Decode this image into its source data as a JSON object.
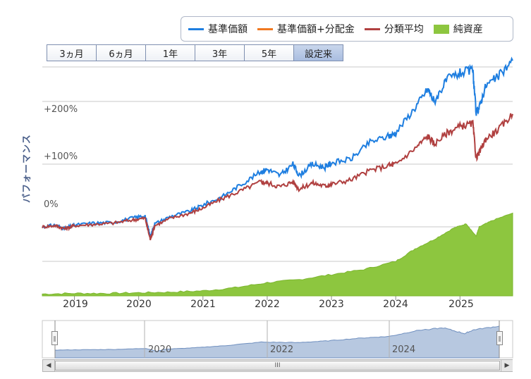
{
  "legend": [
    {
      "label": "基準価額",
      "color": "#1e7ee0",
      "kind": "line"
    },
    {
      "label": "基準価額+分配金",
      "color": "#f07820",
      "kind": "line"
    },
    {
      "label": "分類平均",
      "color": "#b04040",
      "kind": "line"
    },
    {
      "label": "純資産",
      "color": "#8dc63f",
      "kind": "area"
    }
  ],
  "range_buttons": [
    "3ヵ月",
    "6ヵ月",
    "1年",
    "3年",
    "5年",
    "設定来"
  ],
  "range_selected": "設定来",
  "y_axis_label": "パフォーマンス",
  "y_ticks": [
    "+200%",
    "+100%",
    "0%"
  ],
  "x_ticks": [
    "2019",
    "2020",
    "2021",
    "2022",
    "2023",
    "2024",
    "2025"
  ],
  "navigator_ticks": [
    "2020",
    "2022",
    "2024"
  ],
  "scrollbar": {
    "left_arrow": "◀",
    "right_arrow": "▶",
    "grip": "III"
  },
  "chart_data": {
    "type": "line",
    "y_unit": "%",
    "ylim": [
      -110,
      255
    ],
    "x_range": [
      2018.5,
      2025.82
    ],
    "series": [
      {
        "name": "基準価額",
        "color": "#1e7ee0",
        "x": [
          2018.5,
          2018.7,
          2018.85,
          2019.0,
          2019.3,
          2019.6,
          2019.9,
          2020.1,
          2020.18,
          2020.25,
          2020.5,
          2020.8,
          2021.0,
          2021.3,
          2021.6,
          2021.9,
          2022.0,
          2022.2,
          2022.4,
          2022.5,
          2022.7,
          2022.9,
          2023.0,
          2023.3,
          2023.6,
          2023.9,
          2024.0,
          2024.3,
          2024.5,
          2024.6,
          2024.8,
          2025.0,
          2025.2,
          2025.25,
          2025.3,
          2025.4,
          2025.6,
          2025.82
        ],
        "values": [
          0,
          3,
          -3,
          3,
          6,
          7,
          14,
          18,
          -15,
          5,
          17,
          25,
          35,
          48,
          68,
          88,
          92,
          82,
          100,
          82,
          100,
          95,
          102,
          108,
          135,
          145,
          150,
          190,
          220,
          200,
          235,
          245,
          250,
          182,
          190,
          225,
          240,
          265
        ]
      },
      {
        "name": "分類平均",
        "color": "#b04040",
        "x": [
          2018.5,
          2018.7,
          2018.85,
          2019.0,
          2019.3,
          2019.6,
          2019.9,
          2020.1,
          2020.18,
          2020.25,
          2020.5,
          2020.8,
          2021.0,
          2021.3,
          2021.6,
          2021.9,
          2022.0,
          2022.2,
          2022.4,
          2022.5,
          2022.7,
          2022.9,
          2023.0,
          2023.3,
          2023.6,
          2023.9,
          2024.0,
          2024.3,
          2024.5,
          2024.6,
          2024.8,
          2025.0,
          2025.2,
          2025.25,
          2025.3,
          2025.4,
          2025.6,
          2025.82
        ],
        "values": [
          0,
          2,
          -3,
          2,
          4,
          6,
          11,
          14,
          -20,
          2,
          14,
          22,
          30,
          45,
          58,
          72,
          70,
          64,
          72,
          60,
          70,
          65,
          68,
          75,
          90,
          98,
          100,
          125,
          145,
          132,
          150,
          160,
          165,
          110,
          118,
          140,
          155,
          180
        ]
      },
      {
        "name": "純資産",
        "color": "#8dc63f",
        "kind": "area",
        "x": [
          2018.5,
          2019.0,
          2019.5,
          2020.0,
          2020.5,
          2021.0,
          2021.5,
          2022.0,
          2022.5,
          2023.0,
          2023.5,
          2024.0,
          2024.3,
          2024.6,
          2024.9,
          2025.1,
          2025.25,
          2025.3,
          2025.5,
          2025.82
        ],
        "values": [
          -107,
          -106,
          -106,
          -105,
          -104,
          -102,
          -97,
          -89,
          -84,
          -76,
          -68,
          -55,
          -35,
          -20,
          -2,
          5,
          -15,
          0,
          10,
          22
        ]
      }
    ],
    "navigator": {
      "x": [
        2018.5,
        2019.0,
        2019.5,
        2020.0,
        2020.18,
        2020.3,
        2020.8,
        2021.3,
        2021.9,
        2022.5,
        2023.0,
        2023.6,
        2024.0,
        2024.5,
        2024.9,
        2025.25,
        2025.4,
        2025.82
      ],
      "values": [
        0,
        3,
        7,
        18,
        -15,
        8,
        25,
        48,
        88,
        82,
        102,
        135,
        150,
        220,
        245,
        182,
        225,
        265
      ]
    }
  }
}
